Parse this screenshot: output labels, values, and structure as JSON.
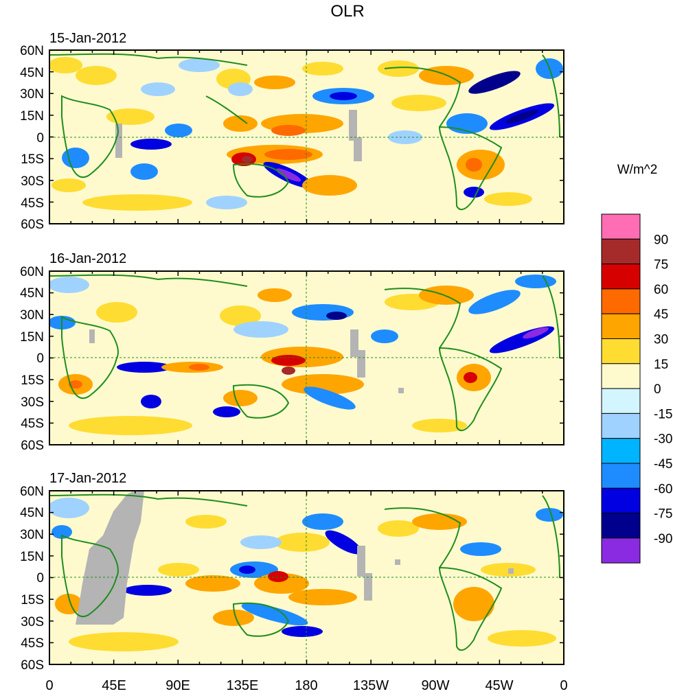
{
  "title": "OLR",
  "units": "W/m^2",
  "panels": [
    {
      "date": "15-Jan-2012"
    },
    {
      "date": "16-Jan-2012"
    },
    {
      "date": "17-Jan-2012"
    }
  ],
  "lat_labels": [
    "60N",
    "45N",
    "30N",
    "15N",
    "0",
    "15S",
    "30S",
    "45S",
    "60S"
  ],
  "lon_labels": [
    "0",
    "45E",
    "90E",
    "135E",
    "180",
    "135W",
    "90W",
    "45W",
    "0"
  ],
  "colorbar": {
    "labels": [
      "90",
      "75",
      "60",
      "45",
      "30",
      "15",
      "0",
      "-15",
      "-30",
      "-45",
      "-60",
      "-75",
      "-90"
    ],
    "colors": [
      "#ff6eb4",
      "#a52a2a",
      "#d70000",
      "#ff6a00",
      "#ffa500",
      "#ffdc32",
      "#fffacd",
      "#d2f5ff",
      "#a0d2ff",
      "#00b4ff",
      "#1e8cff",
      "#0000e1",
      "#00008c",
      "#8a2be2"
    ]
  },
  "missing_color": "#b4b4b4",
  "coast_color": "#1e8c1e"
}
